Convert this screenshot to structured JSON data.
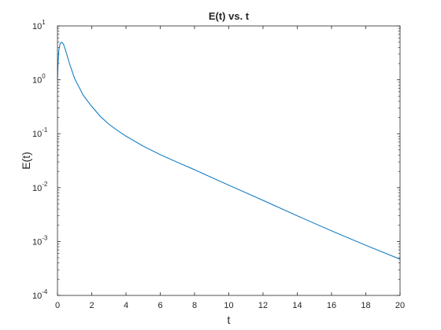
{
  "chart_data": {
    "type": "line",
    "title": "E(t) vs. t",
    "xlabel": "t",
    "ylabel": "E(t)",
    "xlim": [
      0,
      20
    ],
    "ylim": [
      0.0001,
      10
    ],
    "yscale": "log",
    "grid": false,
    "legend": "none",
    "x_ticks": [
      0,
      2,
      4,
      6,
      8,
      10,
      12,
      14,
      16,
      18,
      20
    ],
    "y_ticks": [
      {
        "value": 0.0001,
        "base": "10",
        "exp": "-4"
      },
      {
        "value": 0.001,
        "base": "10",
        "exp": "-3"
      },
      {
        "value": 0.01,
        "base": "10",
        "exp": "-2"
      },
      {
        "value": 0.1,
        "base": "10",
        "exp": "-1"
      },
      {
        "value": 1,
        "base": "10",
        "exp": "0"
      },
      {
        "value": 10,
        "base": "10",
        "exp": "1"
      }
    ],
    "series": [
      {
        "color": "#0072bd",
        "x": [
          0,
          0.03,
          0.08,
          0.15,
          0.25,
          0.35,
          0.5,
          0.7,
          1.0,
          1.5,
          2.0,
          2.5,
          3.0,
          3.5,
          4.0,
          5.0,
          6.0,
          7.0,
          8.0,
          10.0,
          12.0,
          14.0,
          16.0,
          18.0,
          20.0
        ],
        "y": [
          1.0,
          2.0,
          3.5,
          4.7,
          5.0,
          4.6,
          3.3,
          2.0,
          1.05,
          0.52,
          0.32,
          0.21,
          0.15,
          0.115,
          0.09,
          0.059,
          0.041,
          0.0295,
          0.0215,
          0.0111,
          0.0058,
          0.003,
          0.00158,
          0.00085,
          0.00047
        ]
      }
    ]
  }
}
